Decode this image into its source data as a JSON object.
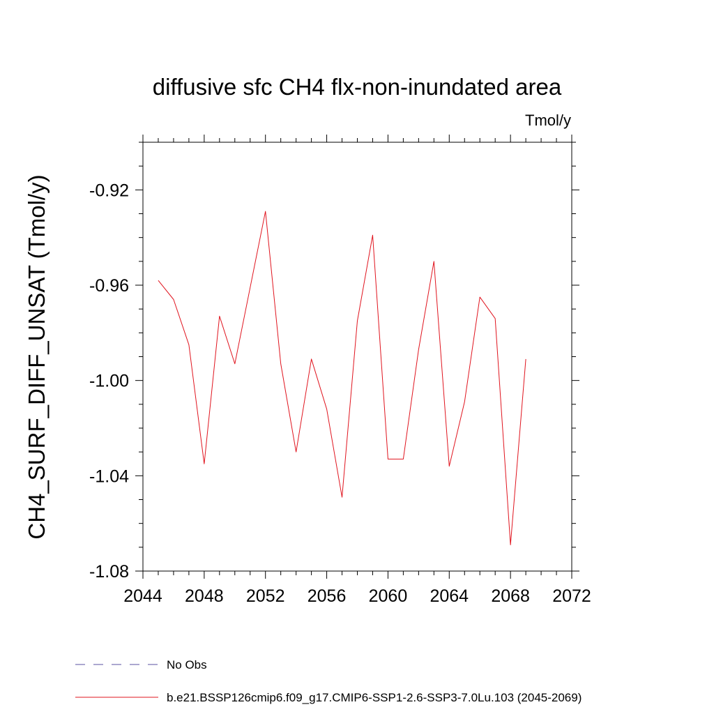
{
  "chart_data": {
    "type": "line",
    "title": "diffusive sfc CH4 flx-non-inundated area",
    "units_label": "Tmol/y",
    "ylabel": "CH4_SURF_DIFF_UNSAT  (Tmol/y)",
    "xlabel": "",
    "xlim": [
      2044,
      2072
    ],
    "ylim": [
      -1.08,
      -0.9
    ],
    "x_ticks": [
      2044,
      2048,
      2052,
      2056,
      2060,
      2064,
      2068,
      2072
    ],
    "x_tick_labels": [
      "2044",
      "2048",
      "2052",
      "2056",
      "2060",
      "2064",
      "2068",
      "2072"
    ],
    "y_ticks": [
      -1.08,
      -1.04,
      -1.0,
      -0.96,
      -0.92
    ],
    "y_tick_labels": [
      "-1.08",
      "-1.04",
      "-1.00",
      "-0.96",
      "-0.92"
    ],
    "x_minor_step": 1,
    "y_minor_step": 0.01,
    "grid": false,
    "legend_position": "bottom",
    "series": [
      {
        "name": "b.e21.BSSP126cmip6.f09_g17.CMIP6-SSP1-2.6-SSP3-7.0Lu.103 (2045-2069)",
        "color": "#e0141e",
        "style": "solid",
        "x": [
          2045,
          2046,
          2047,
          2048,
          2049,
          2050,
          2051,
          2052,
          2053,
          2054,
          2055,
          2056,
          2057,
          2058,
          2059,
          2060,
          2061,
          2062,
          2063,
          2064,
          2065,
          2066,
          2067,
          2068,
          2069
        ],
        "y": [
          -0.958,
          -0.966,
          -0.985,
          -1.035,
          -0.973,
          -0.993,
          -0.961,
          -0.929,
          -0.993,
          -1.03,
          -0.991,
          -1.012,
          -1.049,
          -0.975,
          -0.939,
          -1.033,
          -1.033,
          -0.987,
          -0.95,
          -1.036,
          -1.009,
          -0.965,
          -0.974,
          -1.069,
          -0.991
        ]
      }
    ],
    "legend": [
      {
        "label": "No Obs",
        "color": "#5a50a0",
        "style": "dashed"
      },
      {
        "label": "b.e21.BSSP126cmip6.f09_g17.CMIP6-SSP1-2.6-SSP3-7.0Lu.103 (2045-2069)",
        "color": "#e0141e",
        "style": "solid"
      }
    ]
  }
}
